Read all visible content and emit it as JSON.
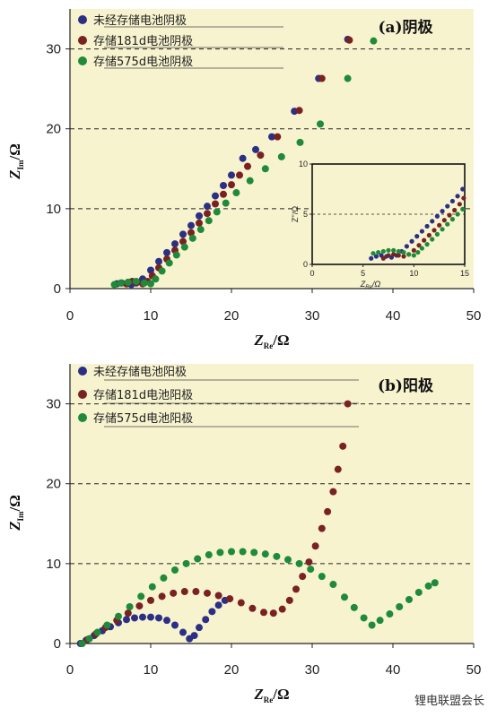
{
  "colors": {
    "blue": "#2b2f86",
    "red": "#7a2222",
    "green": "#1f8a3a",
    "panel_bg": "#f7f3cf",
    "grid": "#222222"
  },
  "watermark": "锂电联盟会长",
  "chart_data": [
    {
      "type": "scatter",
      "title": "(a)阴极",
      "xlabel_main": "Z",
      "xlabel_sub": "Re",
      "xlabel_unit": "/Ω",
      "ylabel_main": "Z",
      "ylabel_sub": "Im",
      "ylabel_unit": "/Ω",
      "xlim": [
        0,
        50
      ],
      "ylim": [
        0,
        35
      ],
      "xticks": [
        "0",
        "10",
        "20",
        "30",
        "40",
        "50"
      ],
      "yticks": [
        "0",
        "10",
        "20",
        "30"
      ],
      "grid_y": [
        10,
        20,
        30
      ],
      "legend": "top-left",
      "series": [
        {
          "name": "未经存储电池阴极",
          "color": "blue",
          "points": [
            [
              5.8,
              0.6
            ],
            [
              6.4,
              0.7
            ],
            [
              7,
              0.6
            ],
            [
              7.6,
              0.5
            ],
            [
              8.2,
              0.7
            ],
            [
              9,
              1.2
            ],
            [
              10,
              2.3
            ],
            [
              11,
              3.4
            ],
            [
              12,
              4.5
            ],
            [
              13,
              5.6
            ],
            [
              14,
              6.8
            ],
            [
              15,
              7.9
            ],
            [
              16,
              9.1
            ],
            [
              17,
              10.3
            ],
            [
              18,
              11.6
            ],
            [
              19,
              12.9
            ],
            [
              20,
              14.2
            ],
            [
              21.4,
              16.3
            ],
            [
              23,
              17.4
            ],
            [
              25,
              19.0
            ],
            [
              27.8,
              22.2
            ],
            [
              30.8,
              26.3
            ],
            [
              34.4,
              31.2
            ]
          ]
        },
        {
          "name": "存储181d电池阴极",
          "color": "red",
          "points": [
            [
              7,
              0.6
            ],
            [
              7.7,
              0.9
            ],
            [
              8.3,
              0.8
            ],
            [
              9,
              0.6
            ],
            [
              9.6,
              0.9
            ],
            [
              10.2,
              1.6
            ],
            [
              11,
              2.6
            ],
            [
              12,
              3.7
            ],
            [
              13,
              4.8
            ],
            [
              14,
              5.9
            ],
            [
              15,
              7.0
            ],
            [
              16,
              8.2
            ],
            [
              17,
              9.4
            ],
            [
              18,
              10.6
            ],
            [
              19,
              11.8
            ],
            [
              20,
              13.0
            ],
            [
              21,
              14.2
            ],
            [
              22,
              15.3
            ],
            [
              23.6,
              16.7
            ],
            [
              25.7,
              19.0
            ],
            [
              28.4,
              22.3
            ],
            [
              31.2,
              26.3
            ],
            [
              34.6,
              31.1
            ]
          ]
        },
        {
          "name": "存储575d电池阴极",
          "color": "green",
          "points": [
            [
              5.5,
              0.5
            ],
            [
              6.3,
              0.7
            ],
            [
              7.2,
              0.8
            ],
            [
              8.2,
              0.9
            ],
            [
              9.2,
              0.7
            ],
            [
              10,
              0.6
            ],
            [
              10.6,
              1.2
            ],
            [
              11.4,
              2.2
            ],
            [
              12.3,
              3.2
            ],
            [
              13.2,
              4.2
            ],
            [
              14.2,
              5.2
            ],
            [
              15.2,
              6.3
            ],
            [
              16.2,
              7.4
            ],
            [
              17.2,
              8.5
            ],
            [
              18.2,
              9.6
            ],
            [
              19.3,
              10.7
            ],
            [
              20.6,
              12.0
            ],
            [
              22.3,
              13.5
            ],
            [
              24.2,
              15.0
            ],
            [
              26.2,
              16.5
            ],
            [
              28.5,
              18.3
            ],
            [
              31,
              20.6
            ],
            [
              34.4,
              26.3
            ],
            [
              37.6,
              31.0
            ]
          ]
        }
      ],
      "inset": {
        "xlim": [
          0,
          15
        ],
        "ylim": [
          0,
          10
        ],
        "xticks": [
          "0",
          "5",
          "10",
          "15"
        ],
        "yticks": [
          "0",
          "5",
          "10"
        ],
        "xlabel_main": "Z",
        "xlabel_sub": "Re",
        "xlabel_unit": "/Ω",
        "ylabel_main": "Z''",
        "ylabel_unit": "/Ω",
        "series": [
          {
            "color": "blue",
            "points": [
              [
                5.8,
                0.6
              ],
              [
                6.3,
                0.8
              ],
              [
                6.8,
                0.9
              ],
              [
                7.3,
                0.8
              ],
              [
                7.8,
                0.7
              ],
              [
                8.3,
                0.9
              ],
              [
                8.8,
                1.3
              ],
              [
                9.3,
                1.8
              ],
              [
                9.8,
                2.3
              ],
              [
                10.3,
                2.8
              ],
              [
                10.8,
                3.3
              ],
              [
                11.3,
                3.8
              ],
              [
                11.8,
                4.3
              ],
              [
                12.3,
                4.8
              ],
              [
                12.8,
                5.3
              ],
              [
                13.3,
                5.8
              ],
              [
                13.8,
                6.3
              ],
              [
                14.3,
                6.8
              ],
              [
                14.8,
                7.5
              ]
            ]
          },
          {
            "color": "red",
            "points": [
              [
                7,
                0.6
              ],
              [
                7.5,
                0.9
              ],
              [
                8,
                1.0
              ],
              [
                8.5,
                0.9
              ],
              [
                9,
                0.8
              ],
              [
                9.5,
                1.0
              ],
              [
                10,
                1.4
              ],
              [
                10.5,
                1.9
              ],
              [
                11,
                2.4
              ],
              [
                11.5,
                2.9
              ],
              [
                12,
                3.4
              ],
              [
                12.5,
                3.9
              ],
              [
                13,
                4.4
              ],
              [
                13.5,
                4.9
              ],
              [
                14,
                5.4
              ],
              [
                14.5,
                6.0
              ],
              [
                14.9,
                6.6
              ]
            ]
          },
          {
            "color": "green",
            "points": [
              [
                6,
                1.1
              ],
              [
                6.5,
                1.2
              ],
              [
                7,
                1.3
              ],
              [
                7.5,
                1.4
              ],
              [
                8,
                1.4
              ],
              [
                8.5,
                1.3
              ],
              [
                9,
                1.2
              ],
              [
                9.5,
                1.0
              ],
              [
                10,
                0.9
              ],
              [
                10.4,
                1.2
              ],
              [
                10.8,
                1.6
              ],
              [
                11.3,
                2.0
              ],
              [
                11.8,
                2.5
              ],
              [
                12.3,
                3.0
              ],
              [
                12.8,
                3.5
              ],
              [
                13.3,
                4.0
              ],
              [
                13.8,
                4.5
              ],
              [
                14.3,
                5.0
              ],
              [
                14.8,
                5.5
              ]
            ]
          }
        ]
      }
    },
    {
      "type": "scatter",
      "title": "(b)阳极",
      "xlabel_main": "Z",
      "xlabel_sub": "Re",
      "xlabel_unit": "/Ω",
      "ylabel_main": "Z",
      "ylabel_sub": "Im",
      "ylabel_unit": "/Ω",
      "xlim": [
        0,
        50
      ],
      "ylim": [
        0,
        35
      ],
      "xticks": [
        "0",
        "10",
        "20",
        "30",
        "40",
        "50"
      ],
      "yticks": [
        "0",
        "10",
        "20",
        "30"
      ],
      "grid_y": [
        10,
        20,
        30
      ],
      "legend": "top-left",
      "series": [
        {
          "name": "未经存储电池阳极",
          "color": "blue",
          "points": [
            [
              1.3,
              0
            ],
            [
              2,
              0.4
            ],
            [
              3,
              1.0
            ],
            [
              4,
              1.6
            ],
            [
              5,
              2.1
            ],
            [
              6,
              2.6
            ],
            [
              7,
              3.0
            ],
            [
              8,
              3.2
            ],
            [
              9,
              3.3
            ],
            [
              10,
              3.3
            ],
            [
              11,
              3.2
            ],
            [
              12,
              2.9
            ],
            [
              13,
              2.3
            ],
            [
              14,
              1.4
            ],
            [
              14.8,
              0.6
            ],
            [
              15.4,
              1.0
            ],
            [
              16,
              2.0
            ],
            [
              16.8,
              3.0
            ],
            [
              17.6,
              4.0
            ],
            [
              18.4,
              4.8
            ],
            [
              19.2,
              5.4
            ]
          ]
        },
        {
          "name": "存储181d电池阳极",
          "color": "red",
          "points": [
            [
              1.5,
              0
            ],
            [
              2.2,
              0.5
            ],
            [
              3.2,
              1.2
            ],
            [
              4.4,
              2.0
            ],
            [
              5.8,
              2.9
            ],
            [
              7.2,
              3.8
            ],
            [
              8.6,
              4.7
            ],
            [
              10,
              5.4
            ],
            [
              11.4,
              5.9
            ],
            [
              12.8,
              6.3
            ],
            [
              14.2,
              6.5
            ],
            [
              15.6,
              6.5
            ],
            [
              17,
              6.3
            ],
            [
              18.4,
              6.0
            ],
            [
              19.8,
              5.6
            ],
            [
              21.2,
              5.1
            ],
            [
              22.6,
              4.4
            ],
            [
              24,
              3.9
            ],
            [
              25.2,
              3.8
            ],
            [
              26.3,
              4.3
            ],
            [
              27.2,
              5.4
            ],
            [
              28,
              6.8
            ],
            [
              28.8,
              8.4
            ],
            [
              29.6,
              10.2
            ],
            [
              30.4,
              12.2
            ],
            [
              31.2,
              14.4
            ],
            [
              31.9,
              16.5
            ],
            [
              32.6,
              19.0
            ],
            [
              33.2,
              21.8
            ],
            [
              33.8,
              24.7
            ],
            [
              34.4,
              30.0
            ]
          ]
        },
        {
          "name": "存储575d电池阳极",
          "color": "green",
          "points": [
            [
              1.5,
              0
            ],
            [
              2.4,
              0.6
            ],
            [
              3.4,
              1.4
            ],
            [
              4.6,
              2.3
            ],
            [
              6,
              3.4
            ],
            [
              7.4,
              4.6
            ],
            [
              8.8,
              5.9
            ],
            [
              10.2,
              7.1
            ],
            [
              11.6,
              8.2
            ],
            [
              13,
              9.2
            ],
            [
              14.4,
              10.0
            ],
            [
              15.8,
              10.6
            ],
            [
              17.2,
              11.1
            ],
            [
              18.6,
              11.4
            ],
            [
              20,
              11.5
            ],
            [
              21.4,
              11.5
            ],
            [
              22.8,
              11.4
            ],
            [
              24.2,
              11.2
            ],
            [
              25.6,
              10.9
            ],
            [
              27,
              10.5
            ],
            [
              28.4,
              10.0
            ],
            [
              29.8,
              9.3
            ],
            [
              31.2,
              8.4
            ],
            [
              32.6,
              7.4
            ],
            [
              34,
              5.8
            ],
            [
              35.2,
              4.5
            ],
            [
              36.4,
              3.2
            ],
            [
              37.4,
              2.3
            ],
            [
              38.4,
              2.9
            ],
            [
              39.6,
              3.7
            ],
            [
              40.8,
              4.6
            ],
            [
              42,
              5.5
            ],
            [
              43.2,
              6.4
            ],
            [
              44.4,
              7.2
            ],
            [
              45.2,
              7.6
            ]
          ]
        }
      ]
    }
  ]
}
